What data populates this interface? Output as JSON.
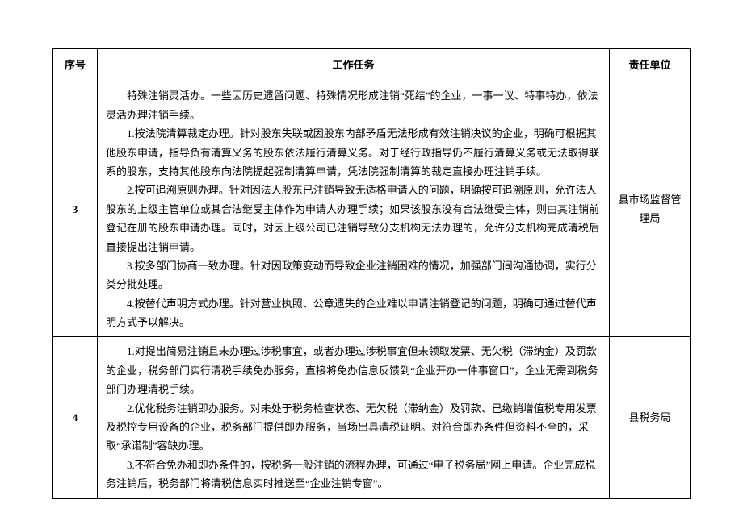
{
  "headers": {
    "seq": "序号",
    "task": "工作任务",
    "dept": "责任单位"
  },
  "rows": [
    {
      "seq": "3",
      "paragraphs": [
        "特殊注销灵活办。一些因历史遗留问题、特殊情况形成注销“死结”的企业，一事一议、特事特办，依法灵活办理注销手续。",
        "1.按法院清算裁定办理。针对股东失联或因股东内部矛盾无法形成有效注销决议的企业，明确可根据其他股东申请，指导负有清算义务的股东依法履行清算义务。对于经行政指导仍不履行清算义务或无法取得联系的股东，支持其他股东向法院提起强制清算申请，凭法院强制清算的裁定直接办理注销手续。",
        "2.按可追溯原则办理。针对因法人股东已注销导致无适格申请人的问题，明确按可追溯原则，允许法人股东的上级主管单位或其合法继受主体作为申请人办理手续；如果该股东没有合法继受主体，则由其注销前登记在册的股东申请办理。同时，对因上级公司已注销导致分支机构无法办理的，允许分支机构完成清税后直接提出注销申请。",
        "3.按多部门协商一致办理。针对因政策变动而导致企业注销困难的情况，加强部门间沟通协调，实行分类分批处理。",
        "4.按替代声明方式办理。针对营业执照、公章遗失的企业难以申请注销登记的问题，明确可通过替代声明方式予以解决。"
      ],
      "dept": "县市场监督管理局"
    },
    {
      "seq": "4",
      "paragraphs": [
        "1.对提出简易注销且未办理过涉税事宜，或者办理过涉税事宜但未领取发票、无欠税（滞纳金）及罚款的企业，税务部门实行清税手续免办服务，直接将免办信息反馈到“企业开办一件事窗口”，企业无需到税务部门办理清税手续。",
        "2.优化税务注销即办服务。对未处于税务检查状态、无欠税（滞纳金）及罚款、已缴销增值税专用发票及税控专用设备的企业，税务部门提供即办服务，当场出具清税证明。对符合即办条件但资料不全的，采取“承诺制”容缺办理。",
        "3.不符合免办和即办条件的，按税务一般注销的流程办理，可通过“电子税务局”网上申请。企业完成税务注销后，税务部门将清税信息实时推送至“企业注销专窗”。"
      ],
      "dept": "县税务局"
    }
  ]
}
